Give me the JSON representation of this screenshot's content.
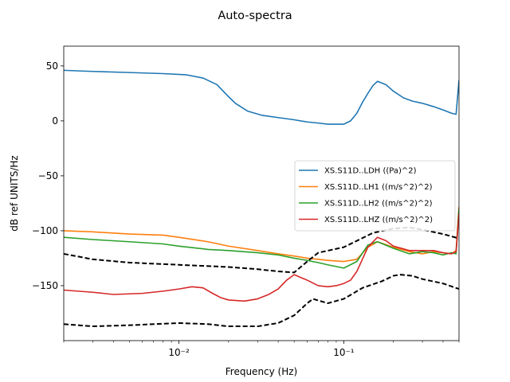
{
  "chart_data": {
    "type": "line",
    "title": "Auto-spectra",
    "xlabel": "Frequency (Hz)",
    "ylabel": "dB ref UNITS/Hz",
    "xscale": "log",
    "xlim": [
      0.002,
      0.5
    ],
    "ylim": [
      -200,
      68
    ],
    "yticks": [
      50,
      0,
      -50,
      -100,
      -150
    ],
    "ytick_labels": [
      "50",
      "0",
      "−50",
      "−100",
      "−150"
    ],
    "xticks": [
      0.01,
      0.1
    ],
    "xtick_labels": [
      "10⁻²",
      "10⁻¹"
    ],
    "legend_position": "center-right",
    "series": [
      {
        "name": "XS.S11D..LDH ((Pa)^2)",
        "color": "#1f77b4",
        "x": [
          0.002,
          0.003,
          0.005,
          0.008,
          0.011,
          0.014,
          0.017,
          0.02,
          0.022,
          0.026,
          0.032,
          0.04,
          0.05,
          0.06,
          0.07,
          0.08,
          0.09,
          0.1,
          0.11,
          0.12,
          0.13,
          0.14,
          0.15,
          0.16,
          0.18,
          0.2,
          0.23,
          0.26,
          0.3,
          0.35,
          0.4,
          0.45,
          0.48,
          0.5
        ],
        "y": [
          46,
          45,
          44,
          43,
          42,
          39,
          33,
          22,
          16,
          9,
          5,
          3,
          1,
          -1,
          -2,
          -3,
          -3,
          -3,
          0,
          7,
          17,
          25,
          32,
          36,
          33,
          27,
          21,
          18,
          16,
          13,
          10,
          7,
          6,
          37
        ]
      },
      {
        "name": "XS.S11D..LH1 ((m/s^2)^2)",
        "color": "#ff7f0e",
        "x": [
          0.002,
          0.003,
          0.005,
          0.008,
          0.01,
          0.015,
          0.02,
          0.03,
          0.04,
          0.05,
          0.06,
          0.07,
          0.08,
          0.1,
          0.12,
          0.14,
          0.16,
          0.2,
          0.25,
          0.3,
          0.35,
          0.4,
          0.45,
          0.48,
          0.5
        ],
        "y": [
          -100,
          -101,
          -103,
          -104,
          -106,
          -110,
          -114,
          -118,
          -121,
          -123,
          -125,
          -126,
          -127,
          -128,
          -126,
          -115,
          -110,
          -115,
          -119,
          -121,
          -119,
          -120,
          -121,
          -118,
          -78
        ]
      },
      {
        "name": "XS.S11D..LH2 ((m/s^2)^2)",
        "color": "#2ca02c",
        "x": [
          0.002,
          0.003,
          0.005,
          0.008,
          0.01,
          0.015,
          0.02,
          0.03,
          0.04,
          0.05,
          0.06,
          0.07,
          0.08,
          0.1,
          0.12,
          0.14,
          0.16,
          0.2,
          0.25,
          0.3,
          0.35,
          0.4,
          0.45,
          0.48,
          0.5
        ],
        "y": [
          -106,
          -108,
          -110,
          -112,
          -114,
          -117,
          -118,
          -120,
          -122,
          -125,
          -127,
          -129,
          -131,
          -134,
          -128,
          -113,
          -110,
          -116,
          -121,
          -119,
          -120,
          -122,
          -120,
          -121,
          -80
        ]
      },
      {
        "name": "XS.S11D..LHZ ((m/s^2)^2)",
        "color": "#d62728",
        "x": [
          0.002,
          0.003,
          0.004,
          0.006,
          0.008,
          0.01,
          0.012,
          0.014,
          0.016,
          0.018,
          0.02,
          0.025,
          0.03,
          0.035,
          0.04,
          0.045,
          0.05,
          0.06,
          0.07,
          0.08,
          0.09,
          0.1,
          0.11,
          0.12,
          0.14,
          0.16,
          0.18,
          0.2,
          0.25,
          0.3,
          0.35,
          0.4,
          0.45,
          0.48,
          0.5
        ],
        "y": [
          -154,
          -156,
          -158,
          -157,
          -155,
          -153,
          -151,
          -152,
          -157,
          -161,
          -163,
          -164,
          -162,
          -158,
          -153,
          -145,
          -140,
          -145,
          -150,
          -151,
          -150,
          -148,
          -145,
          -137,
          -115,
          -106,
          -109,
          -114,
          -118,
          -118,
          -118,
          -120,
          -121,
          -119,
          -84
        ]
      },
      {
        "name": "",
        "color": "#000000",
        "dashed": true,
        "x": [
          0.002,
          0.003,
          0.005,
          0.01,
          0.02,
          0.03,
          0.04,
          0.05,
          0.06,
          0.07,
          0.1,
          0.15,
          0.2,
          0.25,
          0.3,
          0.4,
          0.5
        ],
        "y": [
          -121,
          -126,
          -129,
          -131,
          -133,
          -135,
          -137,
          -138,
          -128,
          -120,
          -115,
          -102,
          -98,
          -97,
          -99,
          -103,
          -107
        ]
      },
      {
        "name": "",
        "color": "#000000",
        "dashed": true,
        "x": [
          0.002,
          0.003,
          0.005,
          0.01,
          0.015,
          0.02,
          0.03,
          0.04,
          0.05,
          0.06,
          0.065,
          0.08,
          0.1,
          0.13,
          0.17,
          0.2,
          0.22,
          0.26,
          0.3,
          0.4,
          0.5
        ],
        "y": [
          -185,
          -187,
          -186,
          -184,
          -185,
          -187,
          -187,
          -184,
          -177,
          -166,
          -162,
          -166,
          -162,
          -152,
          -146,
          -141,
          -140,
          -141,
          -144,
          -148,
          -153
        ]
      }
    ]
  }
}
